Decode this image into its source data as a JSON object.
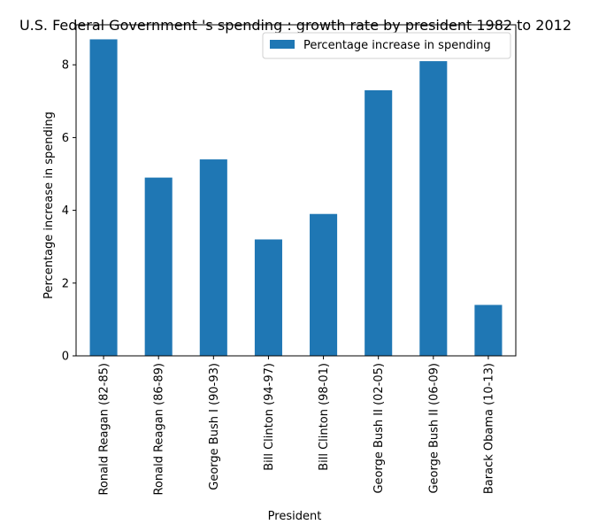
{
  "chart_data": {
    "type": "bar",
    "title": "U.S. Federal Government 's spending : growth rate by president 1982 to 2012",
    "xlabel": "President",
    "ylabel": "Percentage increase in spending",
    "categories": [
      "Ronald Reagan (82-85)",
      "Ronald Reagan (86-89)",
      "George Bush I (90-93)",
      "Bill Clinton (94-97)",
      "Bill Clinton (98-01)",
      "George Bush II (02-05)",
      "George Bush II (06-09)",
      "Barack Obama (10-13)"
    ],
    "series": [
      {
        "name": "Percentage increase in spending",
        "values": [
          8.7,
          4.9,
          5.4,
          3.2,
          3.9,
          7.3,
          8.1,
          1.4
        ],
        "color": "#1f77b4"
      }
    ],
    "ylim": [
      0,
      9.1
    ],
    "yticks": [
      0,
      2,
      4,
      6,
      8
    ],
    "legend": "top-right",
    "grid": false
  }
}
